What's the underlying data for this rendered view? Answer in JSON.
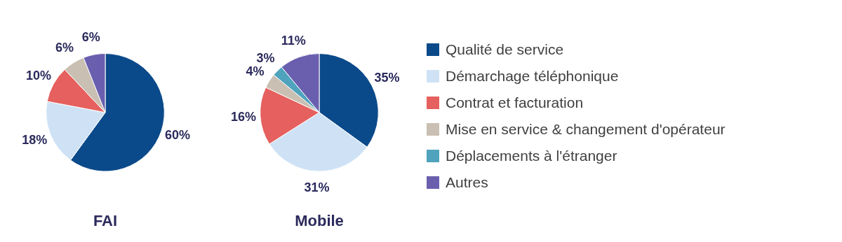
{
  "chart_data": [
    {
      "type": "pie",
      "title": "FAI",
      "categories": [
        null,
        null,
        null,
        null,
        null
      ],
      "values": [
        60,
        18,
        10,
        6,
        6
      ],
      "value_labels": [
        "60%",
        "18%",
        "10%",
        "6%",
        "6%"
      ],
      "colors": [
        "#0b4a8a",
        "#cfe2f5",
        "#e5605e",
        "#c9bfb2",
        "#6a5fae"
      ],
      "legend": false
    },
    {
      "type": "pie",
      "title": "Mobile",
      "categories": [
        "Qualité de service",
        "Démarchage téléphonique",
        "Contrat et facturation",
        "Mise en service & changement d'opérateur",
        "Déplacements à l'étranger",
        "Autres"
      ],
      "values": [
        35,
        31,
        16,
        4,
        3,
        11
      ],
      "value_labels": [
        "35%",
        "31%",
        "16%",
        "4%",
        "3%",
        "11%"
      ],
      "colors": [
        "#0b4a8a",
        "#cfe2f5",
        "#e5605e",
        "#c9bfb2",
        "#4fa3bd",
        "#6a5fae"
      ],
      "legend": "right"
    }
  ]
}
